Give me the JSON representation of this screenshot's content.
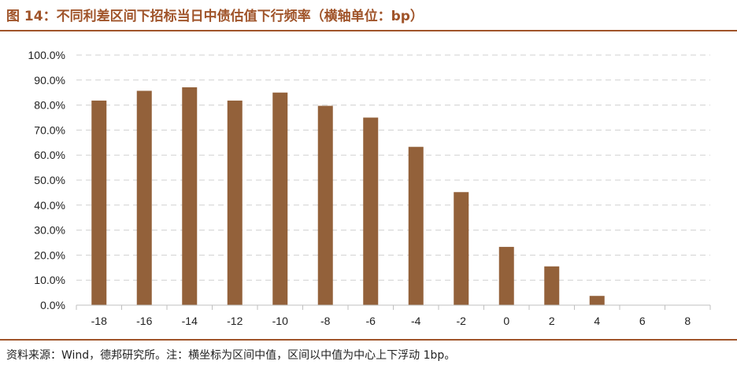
{
  "figure": {
    "title": "图 14：不同利差区间下招标当日中债估值下行频率（横轴单位：bp）",
    "source": "资料来源：Wind，德邦研究所。注：横坐标为区间中值，区间以中值为中心上下浮动 1bp。"
  },
  "colors": {
    "bar": "#93613a",
    "accent": "#a0542a",
    "grid": "#d0d0d0",
    "axis": "#bfbfbf"
  },
  "chart_data": {
    "type": "bar",
    "title": "不同利差区间下招标当日中债估值下行频率（横轴单位：bp）",
    "xlabel": "",
    "ylabel": "",
    "categories": [
      "-18",
      "-16",
      "-14",
      "-12",
      "-10",
      "-8",
      "-6",
      "-4",
      "-2",
      "0",
      "2",
      "4",
      "6",
      "8"
    ],
    "values": [
      81.8,
      85.7,
      87.1,
      81.8,
      85.0,
      79.7,
      75.0,
      63.3,
      45.2,
      23.3,
      15.5,
      3.7,
      0,
      0
    ],
    "ylim": [
      0,
      100
    ],
    "yticks": [
      "0.0%",
      "10.0%",
      "20.0%",
      "30.0%",
      "40.0%",
      "50.0%",
      "60.0%",
      "70.0%",
      "80.0%",
      "90.0%",
      "100.0%"
    ],
    "grid": true,
    "legend": "none"
  }
}
